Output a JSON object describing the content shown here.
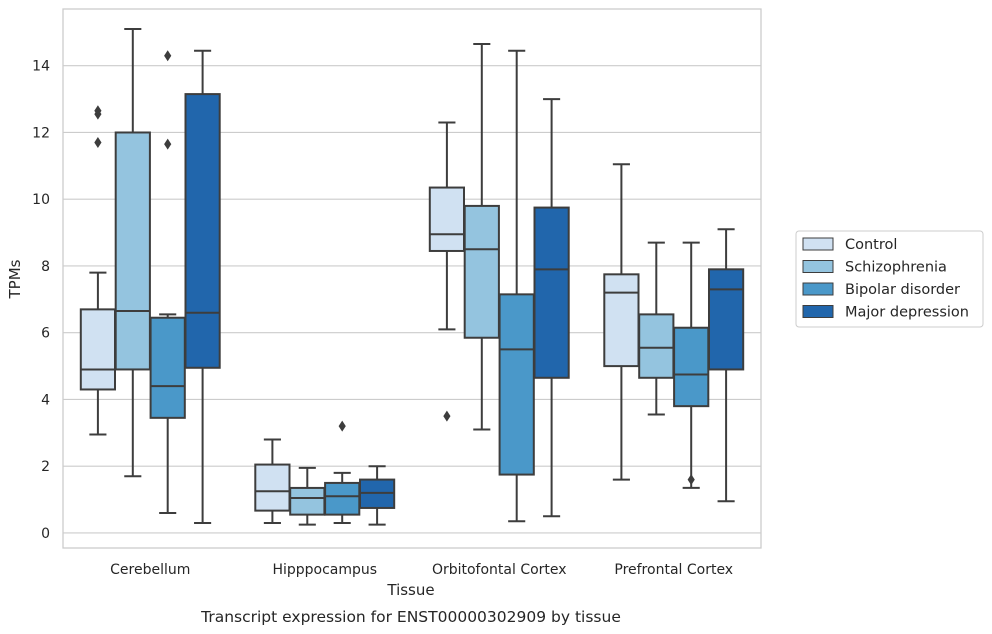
{
  "caption": "Transcript expression for ENST00000302909 by tissue",
  "chart_data": {
    "type": "box",
    "title": "",
    "xlabel": "Tissue",
    "ylabel": "TPMs",
    "ylim": [
      -0.45,
      15.7
    ],
    "yticks": [
      0,
      2,
      4,
      6,
      8,
      10,
      12,
      14
    ],
    "grid": "horizontal",
    "legend_position": "right",
    "categories": [
      "Cerebellum",
      "Hipppocampus",
      "Orbitofontal Cortex",
      "Prefrontal Cortex"
    ],
    "series": [
      {
        "name": "Control",
        "color": "#d0e1f2",
        "boxes": [
          {
            "whisker_low": 2.95,
            "q1": 4.3,
            "median": 4.9,
            "q3": 6.7,
            "whisker_high": 7.8,
            "outliers": [
              11.7,
              12.55,
              12.65
            ]
          },
          {
            "whisker_low": 0.3,
            "q1": 0.67,
            "median": 1.25,
            "q3": 2.05,
            "whisker_high": 2.8,
            "outliers": []
          },
          {
            "whisker_low": 6.1,
            "q1": 8.45,
            "median": 8.95,
            "q3": 10.35,
            "whisker_high": 12.3,
            "outliers": [
              3.5
            ]
          },
          {
            "whisker_low": 1.6,
            "q1": 5.0,
            "median": 7.2,
            "q3": 7.75,
            "whisker_high": 11.05,
            "outliers": []
          }
        ]
      },
      {
        "name": "Schizophrenia",
        "color": "#94c4df",
        "boxes": [
          {
            "whisker_low": 1.7,
            "q1": 4.9,
            "median": 6.65,
            "q3": 12.0,
            "whisker_high": 15.1,
            "outliers": []
          },
          {
            "whisker_low": 0.25,
            "q1": 0.55,
            "median": 1.05,
            "q3": 1.35,
            "whisker_high": 1.95,
            "outliers": []
          },
          {
            "whisker_low": 3.1,
            "q1": 5.85,
            "median": 8.5,
            "q3": 9.8,
            "whisker_high": 14.65,
            "outliers": []
          },
          {
            "whisker_low": 3.55,
            "q1": 4.65,
            "median": 5.55,
            "q3": 6.55,
            "whisker_high": 8.7,
            "outliers": []
          }
        ]
      },
      {
        "name": "Bipolar disorder",
        "color": "#4a98c9",
        "boxes": [
          {
            "whisker_low": 0.6,
            "q1": 3.45,
            "median": 4.4,
            "q3": 6.45,
            "whisker_high": 6.55,
            "outliers": [
              11.65,
              14.3
            ]
          },
          {
            "whisker_low": 0.3,
            "q1": 0.55,
            "median": 1.1,
            "q3": 1.5,
            "whisker_high": 1.8,
            "outliers": [
              3.2
            ]
          },
          {
            "whisker_low": 0.35,
            "q1": 1.75,
            "median": 5.5,
            "q3": 7.15,
            "whisker_high": 14.45,
            "outliers": []
          },
          {
            "whisker_low": 1.35,
            "q1": 3.8,
            "median": 4.75,
            "q3": 6.15,
            "whisker_high": 8.7,
            "outliers": [
              1.6
            ]
          }
        ]
      },
      {
        "name": "Major depression",
        "color": "#2166ac",
        "boxes": [
          {
            "whisker_low": 0.3,
            "q1": 4.95,
            "median": 6.6,
            "q3": 13.15,
            "whisker_high": 14.45,
            "outliers": []
          },
          {
            "whisker_low": 0.25,
            "q1": 0.75,
            "median": 1.2,
            "q3": 1.6,
            "whisker_high": 2.0,
            "outliers": []
          },
          {
            "whisker_low": 0.5,
            "q1": 4.65,
            "median": 7.9,
            "q3": 9.75,
            "whisker_high": 13.0,
            "outliers": []
          },
          {
            "whisker_low": 0.95,
            "q1": 4.9,
            "median": 7.3,
            "q3": 7.9,
            "whisker_high": 9.1,
            "outliers": []
          }
        ]
      }
    ]
  }
}
